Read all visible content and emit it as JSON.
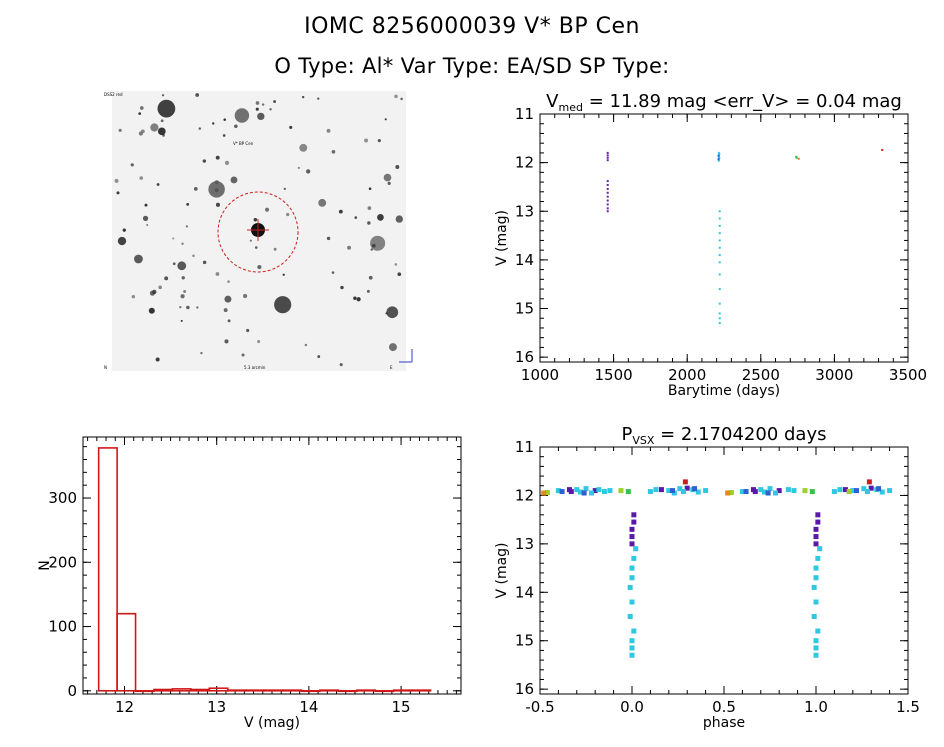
{
  "header": {
    "title": "IOMC 8256000039    V* BP Cen",
    "subtitle": "O Type: Al*  Var Type: EA/SD  SP Type:"
  },
  "finding_chart": {
    "label_top_left": "DSS2 red",
    "label_target": "V* BP Cen",
    "label_bottom_left": "N",
    "label_bottom_center": "5.3 arcmin",
    "label_bottom_right": "E"
  },
  "chart_data": [
    {
      "id": "light_curve_time",
      "type": "scatter",
      "title_main": "V",
      "title_sub": "med",
      "title_rest": " = 11.89 mag <err_V> = 0.04 mag",
      "xlabel": "Barytime (days)",
      "ylabel": "V (mag)",
      "xlim": [
        1000,
        3500
      ],
      "ylim": [
        16.1,
        11.0
      ],
      "xticks": [
        "1000",
        "1500",
        "2000",
        "2500",
        "3000",
        "3500"
      ],
      "yticks": [
        "11",
        "12",
        "13",
        "14",
        "15",
        "16"
      ],
      "series": [
        {
          "color": "#6a1fb0",
          "points": [
            [
              1460,
              11.8
            ],
            [
              1460,
              11.85
            ],
            [
              1460,
              11.9
            ],
            [
              1460,
              11.95
            ],
            [
              1460,
              12.38
            ],
            [
              1460,
              12.46
            ],
            [
              1460,
              12.54
            ],
            [
              1460,
              12.62
            ],
            [
              1460,
              12.7
            ],
            [
              1460,
              12.78
            ],
            [
              1460,
              12.86
            ],
            [
              1460,
              12.94
            ],
            [
              1460,
              13.0
            ]
          ]
        },
        {
          "color": "#2ec8e0",
          "points": [
            [
              2215,
              11.8
            ],
            [
              2215,
              11.84
            ],
            [
              2215,
              11.88
            ],
            [
              2215,
              11.92
            ],
            [
              2215,
              11.96
            ],
            [
              2218,
              11.82
            ],
            [
              2218,
              11.9
            ],
            [
              2221,
              13.0
            ],
            [
              2221,
              13.15
            ],
            [
              2221,
              13.3
            ],
            [
              2221,
              13.45
            ],
            [
              2221,
              13.6
            ],
            [
              2221,
              13.75
            ],
            [
              2221,
              13.9
            ],
            [
              2221,
              14.05
            ],
            [
              2221,
              14.3
            ],
            [
              2221,
              14.6
            ],
            [
              2221,
              14.9
            ],
            [
              2221,
              15.1
            ],
            [
              2221,
              15.2
            ],
            [
              2221,
              15.3
            ]
          ]
        },
        {
          "color": "#2b62d0",
          "points": [
            [
              2213,
              11.86
            ],
            [
              2213,
              11.93
            ]
          ]
        },
        {
          "color": "#33c24a",
          "points": [
            [
              2740,
              11.88
            ],
            [
              2745,
              11.9
            ]
          ]
        },
        {
          "color": "#e08a1a",
          "points": [
            [
              2758,
              11.92
            ]
          ]
        },
        {
          "color": "#cc2020",
          "points": [
            [
              3325,
              11.74
            ]
          ]
        }
      ]
    },
    {
      "id": "histogram",
      "type": "bar",
      "xlabel": "V (mag)",
      "ylabel": "N",
      "xlim": [
        11.55,
        15.65
      ],
      "ylim": [
        -5,
        395
      ],
      "xticks": [
        "12",
        "13",
        "14",
        "15"
      ],
      "yticks": [
        "0",
        "100",
        "200",
        "300"
      ],
      "bin_width": 0.2,
      "bin_starts": [
        11.72,
        11.92,
        12.12,
        12.32,
        12.52,
        12.72,
        12.92,
        13.12,
        13.32,
        13.52,
        13.72,
        13.92,
        14.12,
        14.32,
        14.52,
        14.72,
        14.92,
        15.12
      ],
      "counts": [
        378,
        120,
        0,
        2,
        3,
        2,
        4,
        1,
        1,
        1,
        1,
        0,
        1,
        0,
        1,
        0,
        1,
        1
      ]
    },
    {
      "id": "phased_light_curve",
      "type": "scatter",
      "title_main": "P",
      "title_sub": "VSX",
      "title_rest": " = 2.1704200 days",
      "xlabel": "phase",
      "ylabel": "V (mag)",
      "xlim": [
        -0.5,
        1.5
      ],
      "ylim": [
        16.1,
        11.0
      ],
      "xticks": [
        "-0.5",
        "0.0",
        "0.5",
        "1.0",
        "1.5"
      ],
      "yticks": [
        "11",
        "12",
        "13",
        "14",
        "15",
        "16"
      ],
      "series": [
        {
          "color": "#5a1aa8",
          "points": [
            [
              -0.34,
              11.88
            ],
            [
              -0.33,
              11.92
            ],
            [
              -0.2,
              11.9
            ],
            [
              0.16,
              11.88
            ],
            [
              0.3,
              11.85
            ],
            [
              0.66,
              11.88
            ],
            [
              0.67,
              11.92
            ],
            [
              0.8,
              11.9
            ],
            [
              1.16,
              11.88
            ],
            [
              1.3,
              11.85
            ],
            [
              0.01,
              12.4
            ],
            [
              0.01,
              12.55
            ],
            [
              0.0,
              12.7
            ],
            [
              0.0,
              12.85
            ],
            [
              0.0,
              13.0
            ],
            [
              1.01,
              12.4
            ],
            [
              1.01,
              12.55
            ],
            [
              1.0,
              12.7
            ],
            [
              1.0,
              12.85
            ],
            [
              1.0,
              13.0
            ]
          ]
        },
        {
          "color": "#2ec8e0",
          "points": [
            [
              -0.4,
              11.9
            ],
            [
              -0.3,
              11.88
            ],
            [
              -0.28,
              11.93
            ],
            [
              -0.25,
              11.86
            ],
            [
              -0.22,
              11.95
            ],
            [
              -0.18,
              11.88
            ],
            [
              -0.15,
              11.92
            ],
            [
              -0.12,
              11.9
            ],
            [
              0.1,
              11.92
            ],
            [
              0.13,
              11.88
            ],
            [
              0.2,
              11.9
            ],
            [
              0.23,
              11.95
            ],
            [
              0.26,
              11.86
            ],
            [
              0.28,
              11.92
            ],
            [
              0.33,
              11.88
            ],
            [
              0.36,
              11.93
            ],
            [
              0.4,
              11.9
            ],
            [
              0.6,
              11.92
            ],
            [
              0.7,
              11.88
            ],
            [
              0.72,
              11.93
            ],
            [
              0.75,
              11.86
            ],
            [
              0.78,
              11.95
            ],
            [
              0.85,
              11.88
            ],
            [
              0.88,
              11.9
            ],
            [
              1.1,
              11.92
            ],
            [
              1.13,
              11.88
            ],
            [
              1.2,
              11.9
            ],
            [
              1.26,
              11.86
            ],
            [
              1.28,
              11.92
            ],
            [
              1.33,
              11.88
            ],
            [
              1.36,
              11.93
            ],
            [
              1.4,
              11.9
            ],
            [
              0.02,
              13.1
            ],
            [
              0.01,
              13.3
            ],
            [
              0.0,
              13.5
            ],
            [
              0.0,
              13.7
            ],
            [
              -0.01,
              13.9
            ],
            [
              0.0,
              14.2
            ],
            [
              -0.01,
              14.5
            ],
            [
              0.01,
              14.8
            ],
            [
              0.0,
              15.0
            ],
            [
              0.0,
              15.15
            ],
            [
              0.0,
              15.3
            ],
            [
              1.02,
              13.1
            ],
            [
              1.01,
              13.3
            ],
            [
              1.0,
              13.5
            ],
            [
              1.0,
              13.7
            ],
            [
              0.99,
              13.9
            ],
            [
              1.0,
              14.2
            ],
            [
              0.99,
              14.5
            ],
            [
              1.01,
              14.8
            ],
            [
              1.0,
              15.0
            ],
            [
              1.0,
              15.15
            ],
            [
              1.0,
              15.3
            ]
          ]
        },
        {
          "color": "#2b62d0",
          "points": [
            [
              -0.38,
              11.92
            ],
            [
              -0.26,
              11.95
            ],
            [
              0.22,
              11.9
            ],
            [
              0.34,
              11.86
            ],
            [
              0.62,
              11.92
            ],
            [
              0.74,
              11.95
            ],
            [
              1.22,
              11.9
            ],
            [
              1.34,
              11.86
            ]
          ]
        },
        {
          "color": "#9ad12a",
          "points": [
            [
              -0.46,
              11.94
            ],
            [
              -0.06,
              11.9
            ],
            [
              0.54,
              11.94
            ],
            [
              0.94,
              11.9
            ],
            [
              1.18,
              11.92
            ]
          ]
        },
        {
          "color": "#33c24a",
          "points": [
            [
              -0.02,
              11.92
            ],
            [
              0.98,
              11.92
            ]
          ]
        },
        {
          "color": "#e08a1a",
          "points": [
            [
              -0.48,
              11.95
            ],
            [
              0.52,
              11.95
            ]
          ]
        },
        {
          "color": "#cc2020",
          "points": [
            [
              0.29,
              11.72
            ],
            [
              1.29,
              11.72
            ]
          ]
        }
      ]
    }
  ]
}
